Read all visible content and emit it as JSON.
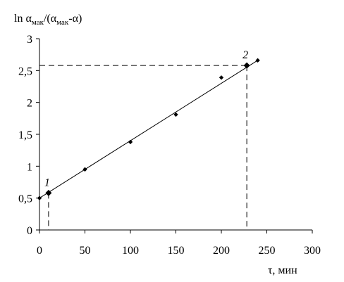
{
  "chart_data": {
    "type": "scatter",
    "ylabel_parts": [
      "ln α",
      "мак",
      "/(α",
      "мак",
      "-α)"
    ],
    "xlabel": "τ, мин",
    "xlim": [
      0,
      300
    ],
    "ylim": [
      0,
      3
    ],
    "x_ticks": [
      0,
      50,
      100,
      150,
      200,
      250,
      300
    ],
    "x_tick_labels": [
      "0",
      "50",
      "100",
      "150",
      "200",
      "250",
      "300"
    ],
    "y_ticks": [
      0,
      0.5,
      1,
      1.5,
      2,
      2.5,
      3
    ],
    "y_tick_labels": [
      "0",
      "0,5",
      "1",
      "1,5",
      "2",
      "2,5",
      "3"
    ],
    "grid": false,
    "points": [
      {
        "x": 0,
        "y": 0.5
      },
      {
        "x": 50,
        "y": 0.95
      },
      {
        "x": 100,
        "y": 1.38
      },
      {
        "x": 150,
        "y": 1.81
      },
      {
        "x": 200,
        "y": 2.39
      },
      {
        "x": 240,
        "y": 2.66
      }
    ],
    "trend_line": {
      "x": [
        0,
        240
      ],
      "y": [
        0.5,
        2.66
      ]
    },
    "markers": [
      {
        "label": "1",
        "x": 10,
        "y": 0.58
      },
      {
        "label": "2",
        "x": 228,
        "y": 2.58
      }
    ],
    "colors": {
      "line": "#000000",
      "points": "#000000"
    }
  }
}
